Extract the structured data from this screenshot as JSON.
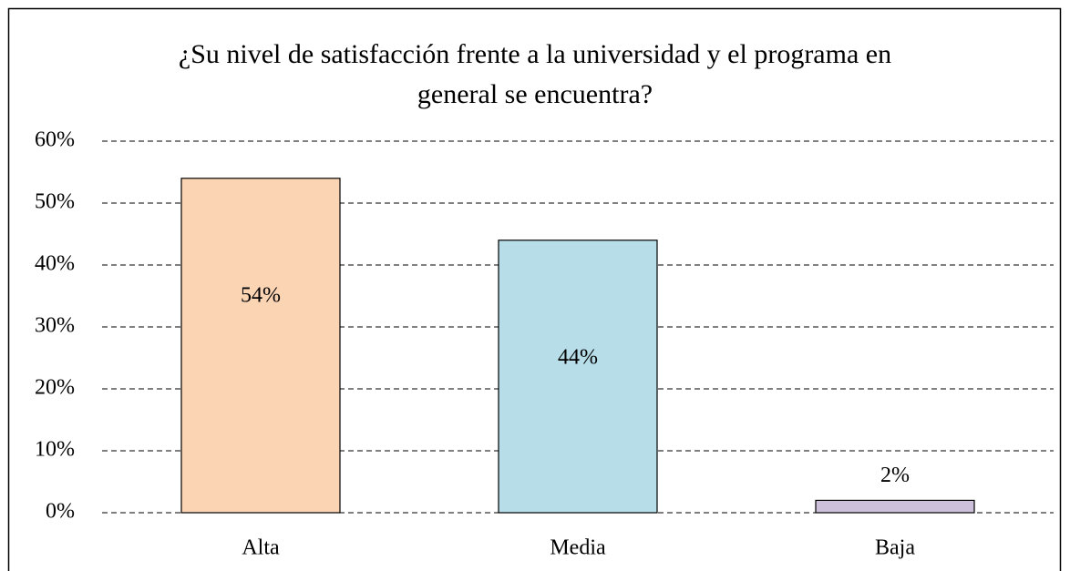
{
  "chart_data": {
    "type": "bar",
    "title": "¿Su nivel de satisfacción frente a la universidad y el programa en general se encuentra?",
    "categories": [
      "Alta",
      "Media",
      "Baja"
    ],
    "values": [
      54,
      44,
      2
    ],
    "value_labels": [
      "54%",
      "44%",
      "2%"
    ],
    "colors": [
      "#fbd4b4",
      "#b7dde8",
      "#ccc0da"
    ],
    "ylim": [
      0,
      60
    ],
    "yticks": [
      {
        "value": 0,
        "label": "0%"
      },
      {
        "value": 10,
        "label": "10%"
      },
      {
        "value": 20,
        "label": "20%"
      },
      {
        "value": 30,
        "label": "30%"
      },
      {
        "value": 40,
        "label": "40%"
      },
      {
        "value": 50,
        "label": "50%"
      },
      {
        "value": 60,
        "label": "60%"
      }
    ],
    "grid": true
  }
}
